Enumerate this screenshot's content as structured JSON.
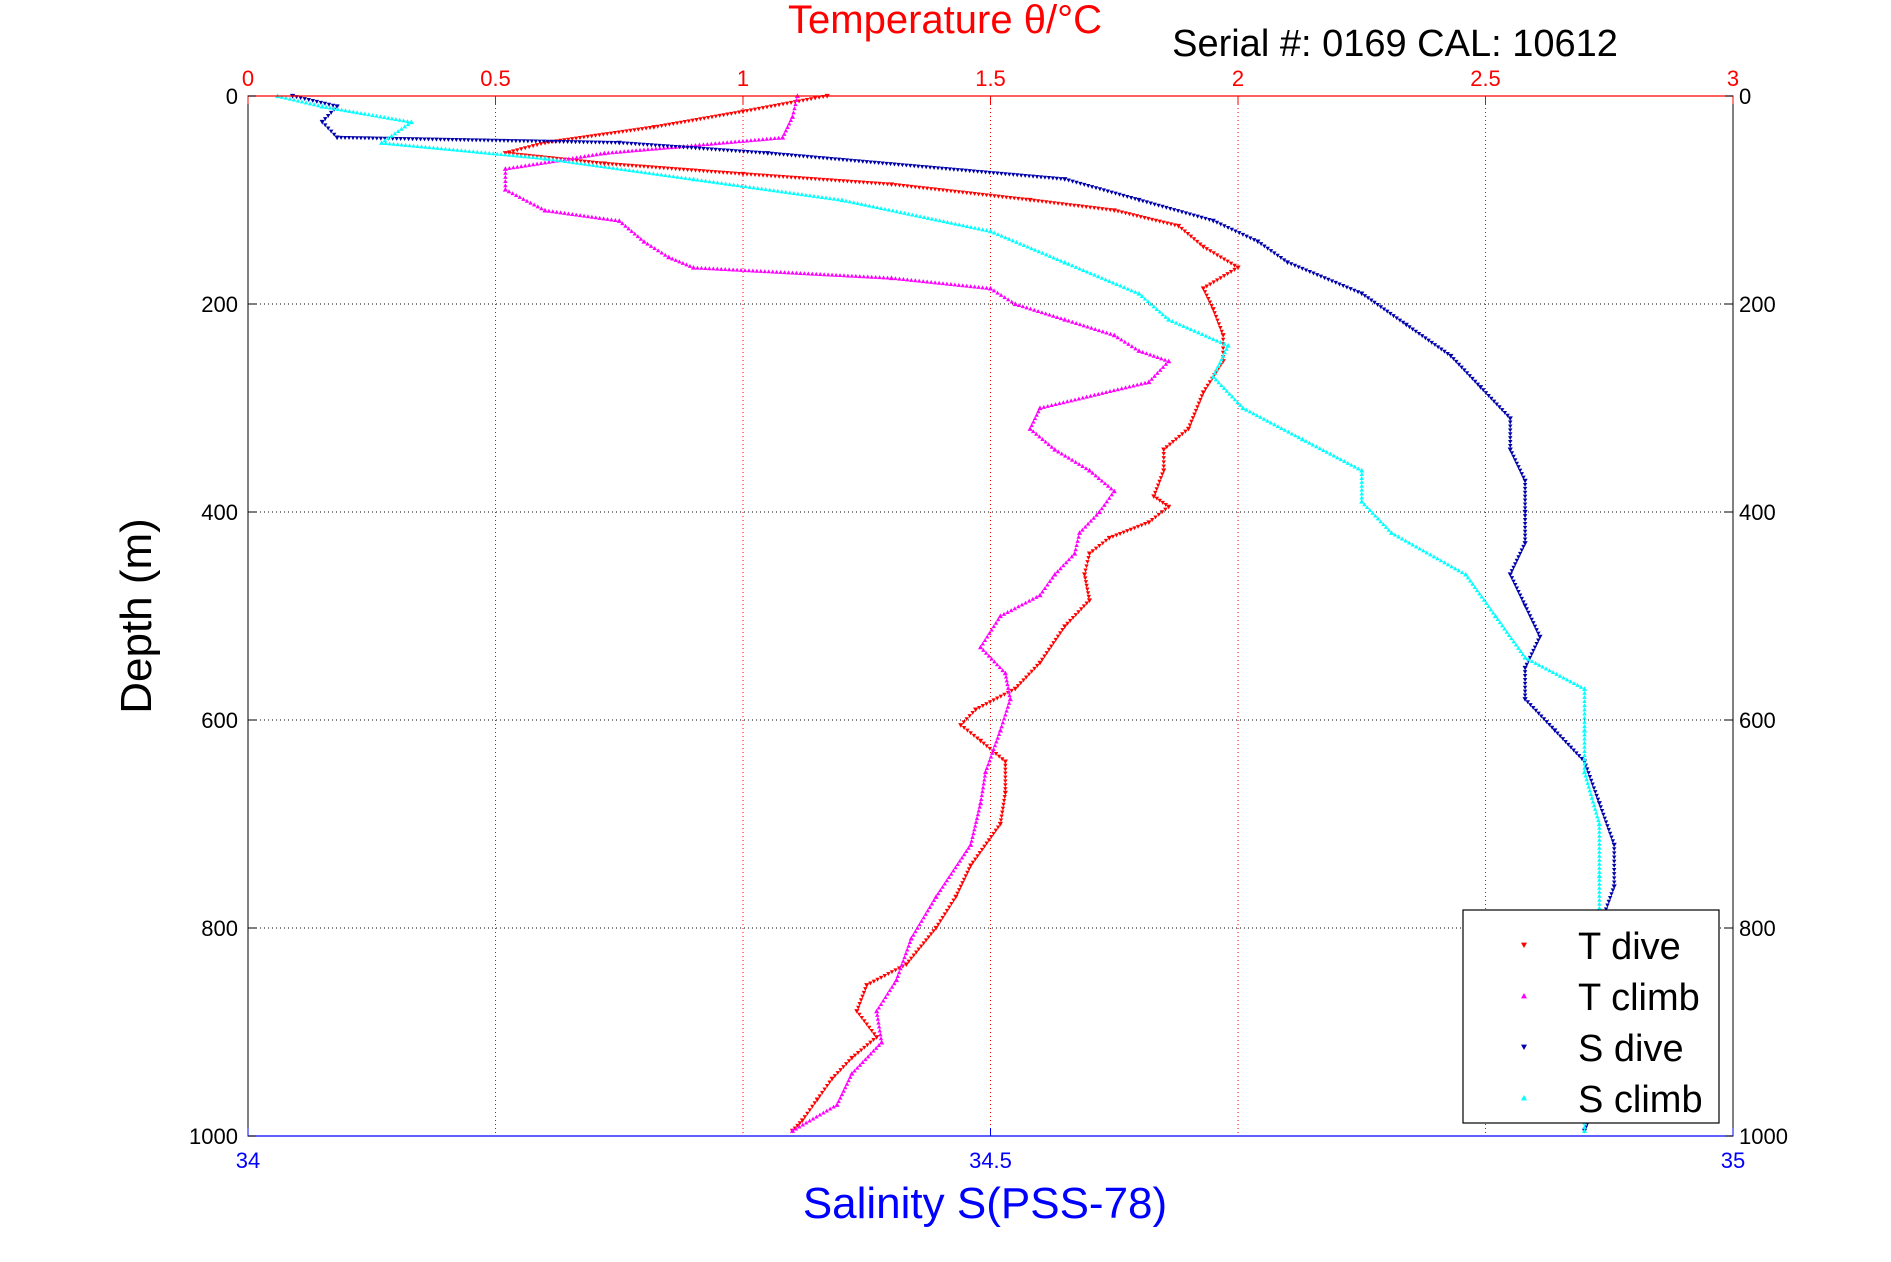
{
  "chart_data": {
    "type": "scatter",
    "title": "Temperature θ/°C",
    "subtitle": "Serial #: 0169 CAL: 10612",
    "ylabel": "Depth (m)",
    "xlabel": "Salinity S(PSS-78)",
    "top_axis": {
      "label": "Temperature θ/°C",
      "range": [
        0,
        3
      ],
      "ticks": [
        "0",
        "0.5",
        "1",
        "1.5",
        "2",
        "2.5",
        "3"
      ],
      "color": "#ff0000"
    },
    "bottom_axis": {
      "label": "Salinity S(PSS-78)",
      "range": [
        34,
        35
      ],
      "ticks": [
        "34",
        "34.5",
        "35"
      ],
      "color": "#0000ff"
    },
    "y_axis": {
      "range": [
        0,
        1000
      ],
      "inverted": true,
      "ticks": [
        "0",
        "200",
        "400",
        "600",
        "800",
        "1000"
      ]
    },
    "grid": true,
    "legend_position": "bottom-right",
    "series": [
      {
        "name": "T dive",
        "axis": "temperature",
        "color": "#ff0000",
        "marker": "triangle-down",
        "points": [
          [
            1.17,
            0
          ],
          [
            1.0,
            15
          ],
          [
            0.82,
            30
          ],
          [
            0.6,
            45
          ],
          [
            0.52,
            55
          ],
          [
            0.72,
            65
          ],
          [
            1.0,
            75
          ],
          [
            1.3,
            85
          ],
          [
            1.58,
            100
          ],
          [
            1.75,
            110
          ],
          [
            1.88,
            125
          ],
          [
            1.93,
            145
          ],
          [
            2.0,
            165
          ],
          [
            1.93,
            185
          ],
          [
            1.95,
            205
          ],
          [
            1.97,
            230
          ],
          [
            1.97,
            255
          ],
          [
            1.93,
            285
          ],
          [
            1.9,
            320
          ],
          [
            1.85,
            340
          ],
          [
            1.85,
            360
          ],
          [
            1.83,
            385
          ],
          [
            1.86,
            395
          ],
          [
            1.82,
            410
          ],
          [
            1.74,
            425
          ],
          [
            1.7,
            440
          ],
          [
            1.69,
            460
          ],
          [
            1.7,
            485
          ],
          [
            1.65,
            510
          ],
          [
            1.6,
            545
          ],
          [
            1.55,
            570
          ],
          [
            1.47,
            590
          ],
          [
            1.44,
            605
          ],
          [
            1.48,
            620
          ],
          [
            1.53,
            640
          ],
          [
            1.53,
            670
          ],
          [
            1.52,
            700
          ],
          [
            1.46,
            740
          ],
          [
            1.43,
            770
          ],
          [
            1.39,
            800
          ],
          [
            1.33,
            835
          ],
          [
            1.25,
            855
          ],
          [
            1.23,
            880
          ],
          [
            1.27,
            905
          ],
          [
            1.22,
            925
          ],
          [
            1.18,
            945
          ],
          [
            1.15,
            965
          ],
          [
            1.12,
            985
          ],
          [
            1.1,
            995
          ]
        ]
      },
      {
        "name": "T climb",
        "axis": "temperature",
        "color": "#ff00ff",
        "marker": "triangle-up",
        "points": [
          [
            1.11,
            0
          ],
          [
            1.1,
            20
          ],
          [
            1.08,
            40
          ],
          [
            0.72,
            55
          ],
          [
            0.52,
            70
          ],
          [
            0.52,
            90
          ],
          [
            0.6,
            110
          ],
          [
            0.75,
            120
          ],
          [
            0.8,
            140
          ],
          [
            0.85,
            155
          ],
          [
            0.9,
            165
          ],
          [
            1.3,
            175
          ],
          [
            1.5,
            185
          ],
          [
            1.55,
            200
          ],
          [
            1.65,
            215
          ],
          [
            1.75,
            230
          ],
          [
            1.8,
            245
          ],
          [
            1.86,
            255
          ],
          [
            1.82,
            275
          ],
          [
            1.6,
            300
          ],
          [
            1.58,
            320
          ],
          [
            1.63,
            340
          ],
          [
            1.7,
            360
          ],
          [
            1.75,
            380
          ],
          [
            1.72,
            400
          ],
          [
            1.68,
            420
          ],
          [
            1.67,
            440
          ],
          [
            1.63,
            460
          ],
          [
            1.6,
            480
          ],
          [
            1.52,
            500
          ],
          [
            1.48,
            530
          ],
          [
            1.53,
            555
          ],
          [
            1.54,
            580
          ],
          [
            1.52,
            610
          ],
          [
            1.49,
            650
          ],
          [
            1.48,
            680
          ],
          [
            1.46,
            720
          ],
          [
            1.39,
            770
          ],
          [
            1.34,
            810
          ],
          [
            1.31,
            850
          ],
          [
            1.27,
            880
          ],
          [
            1.28,
            910
          ],
          [
            1.22,
            940
          ],
          [
            1.19,
            970
          ],
          [
            1.1,
            995
          ]
        ]
      },
      {
        "name": "S dive",
        "axis": "salinity",
        "color": "#0000aa",
        "marker": "triangle-down",
        "points": [
          [
            34.03,
            0
          ],
          [
            34.06,
            10
          ],
          [
            34.05,
            25
          ],
          [
            34.06,
            40
          ],
          [
            34.25,
            45
          ],
          [
            34.35,
            55
          ],
          [
            34.55,
            80
          ],
          [
            34.6,
            100
          ],
          [
            34.65,
            120
          ],
          [
            34.68,
            140
          ],
          [
            34.7,
            160
          ],
          [
            34.75,
            190
          ],
          [
            34.78,
            220
          ],
          [
            34.81,
            250
          ],
          [
            34.83,
            280
          ],
          [
            34.85,
            310
          ],
          [
            34.85,
            340
          ],
          [
            34.86,
            370
          ],
          [
            34.86,
            400
          ],
          [
            34.86,
            430
          ],
          [
            34.85,
            460
          ],
          [
            34.86,
            490
          ],
          [
            34.87,
            520
          ],
          [
            34.86,
            550
          ],
          [
            34.86,
            580
          ],
          [
            34.88,
            610
          ],
          [
            34.9,
            640
          ],
          [
            34.91,
            680
          ],
          [
            34.92,
            720
          ],
          [
            34.92,
            760
          ],
          [
            34.91,
            800
          ],
          [
            34.91,
            840
          ],
          [
            34.91,
            880
          ],
          [
            34.92,
            920
          ],
          [
            34.91,
            960
          ],
          [
            34.9,
            995
          ]
        ]
      },
      {
        "name": "S climb",
        "axis": "salinity",
        "color": "#00ffff",
        "marker": "triangle-up",
        "points": [
          [
            34.02,
            0
          ],
          [
            34.05,
            10
          ],
          [
            34.11,
            25
          ],
          [
            34.09,
            45
          ],
          [
            34.2,
            60
          ],
          [
            34.3,
            80
          ],
          [
            34.4,
            100
          ],
          [
            34.5,
            130
          ],
          [
            34.55,
            160
          ],
          [
            34.6,
            190
          ],
          [
            34.62,
            215
          ],
          [
            34.66,
            240
          ],
          [
            34.65,
            270
          ],
          [
            34.67,
            300
          ],
          [
            34.71,
            330
          ],
          [
            34.75,
            360
          ],
          [
            34.75,
            390
          ],
          [
            34.77,
            420
          ],
          [
            34.82,
            460
          ],
          [
            34.84,
            500
          ],
          [
            34.86,
            540
          ],
          [
            34.9,
            570
          ],
          [
            34.9,
            610
          ],
          [
            34.9,
            650
          ],
          [
            34.91,
            700
          ],
          [
            34.91,
            750
          ],
          [
            34.91,
            800
          ],
          [
            34.9,
            850
          ],
          [
            34.9,
            900
          ],
          [
            34.9,
            950
          ],
          [
            34.9,
            995
          ]
        ]
      }
    ]
  }
}
